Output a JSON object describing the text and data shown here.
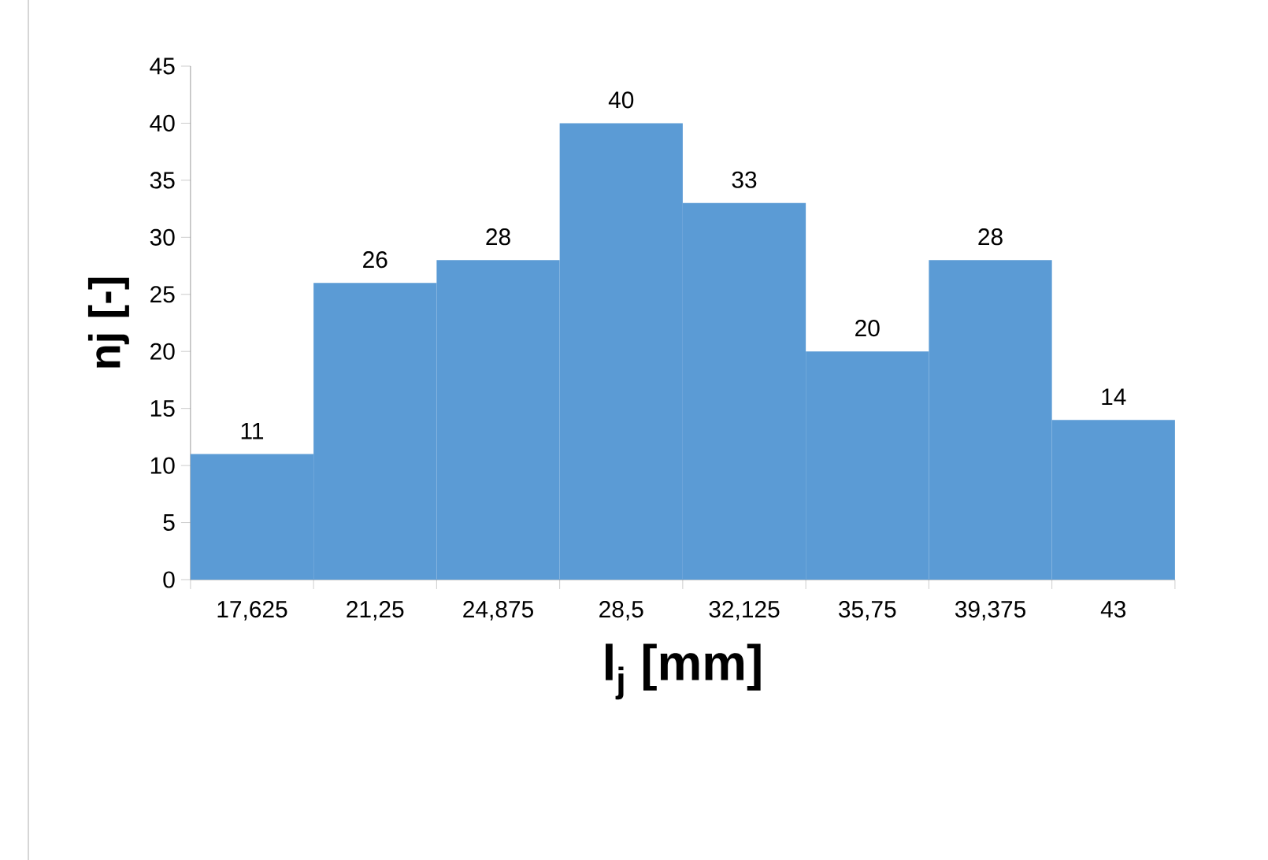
{
  "chart_data": {
    "type": "bar",
    "xlabel": "l$_{j}$ [mm]",
    "ylabel": "nj [-]",
    "categories": [
      "17,625",
      "21,25",
      "24,875",
      "28,5",
      "32,125",
      "35,75",
      "39,375",
      "43"
    ],
    "values": [
      11,
      26,
      28,
      40,
      33,
      20,
      28,
      14
    ],
    "color": "#5b9bd5",
    "ylim": [
      0,
      45
    ],
    "yticks": [
      0,
      5,
      10,
      15,
      20,
      25,
      30,
      35,
      40,
      45
    ],
    "data_labels": true
  }
}
